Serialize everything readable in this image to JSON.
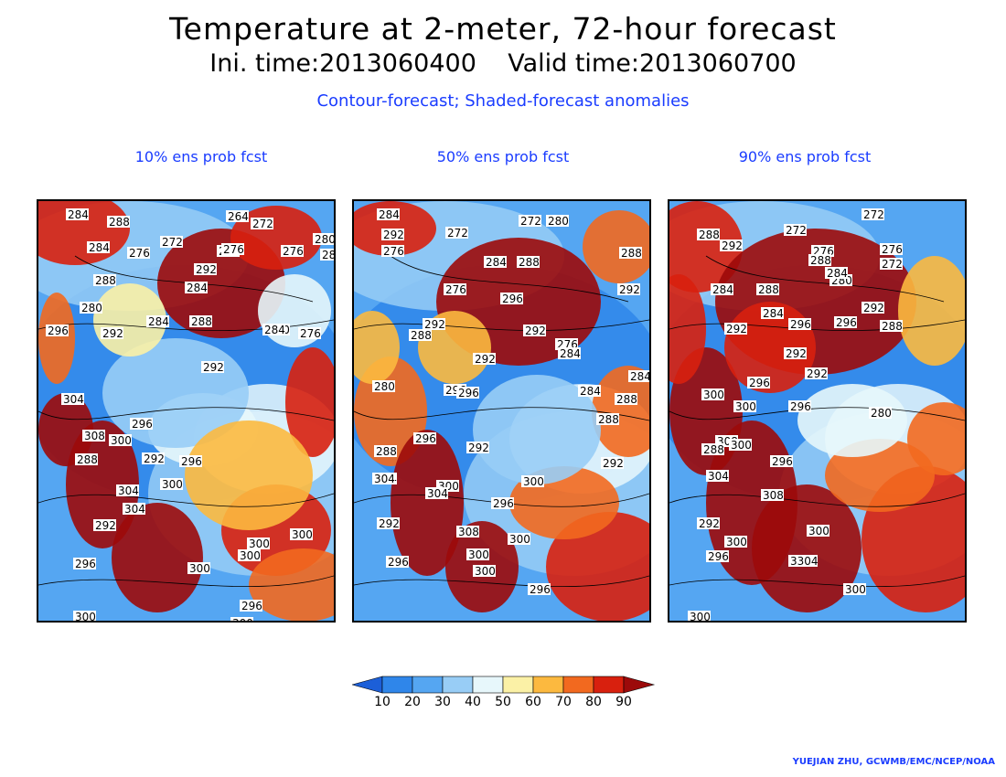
{
  "header": {
    "title": "Temperature at 2-meter, 72-hour forecast",
    "times": "Ini. time:2013060400    Valid time:2013060700",
    "subtitle": "Contour-forecast; Shaded-forecast anomalies"
  },
  "panels": [
    {
      "title": "10% ens prob fcst",
      "labels": [
        "284",
        "288",
        "264",
        "272",
        "280",
        "284",
        "276",
        "272",
        "264",
        "276",
        "280",
        "288",
        "292",
        "284",
        "276",
        "280",
        "290",
        "276",
        "284",
        "296",
        "292",
        "284",
        "288",
        "292",
        "304",
        "296",
        "308",
        "300",
        "292",
        "296",
        "304",
        "288",
        "304",
        "300",
        "300",
        "292",
        "296",
        "300",
        "300",
        "300",
        "300",
        "296",
        "300"
      ]
    },
    {
      "title": "50% ens prob fcst",
      "labels": [
        "284",
        "292",
        "272",
        "272",
        "280",
        "288",
        "292",
        "276",
        "284",
        "288",
        "276",
        "296",
        "292",
        "288",
        "292",
        "276",
        "284",
        "292",
        "280",
        "296",
        "284",
        "284",
        "288",
        "296",
        "288",
        "292",
        "304",
        "296",
        "300",
        "288",
        "292",
        "304",
        "304",
        "296",
        "300",
        "300",
        "308",
        "300",
        "300",
        "292",
        "296",
        "296"
      ]
    },
    {
      "title": "90% ens prob fcst",
      "labels": [
        "288",
        "292",
        "272",
        "272",
        "284",
        "276",
        "288",
        "272",
        "276",
        "292",
        "284",
        "288",
        "280",
        "296",
        "296",
        "280",
        "284",
        "292",
        "292",
        "288",
        "296",
        "292",
        "300",
        "296",
        "300",
        "308",
        "288",
        "304",
        "296",
        "300",
        "308",
        "292",
        "300",
        "296",
        "300",
        "3304",
        "300",
        "300"
      ]
    }
  ],
  "colorbar": {
    "ticks": [
      "10",
      "20",
      "30",
      "40",
      "50",
      "60",
      "70",
      "80",
      "90"
    ],
    "colors": [
      "#1c5fd8",
      "#2f86ea",
      "#55a6f2",
      "#98cdf6",
      "#e7f7fb",
      "#fbf1a6",
      "#fcb93f",
      "#f2691f",
      "#d8200e",
      "#9c0a0a"
    ]
  },
  "credit": "YUEJIAN ZHU, GCWMB/EMC/NCEP/NOAA"
}
